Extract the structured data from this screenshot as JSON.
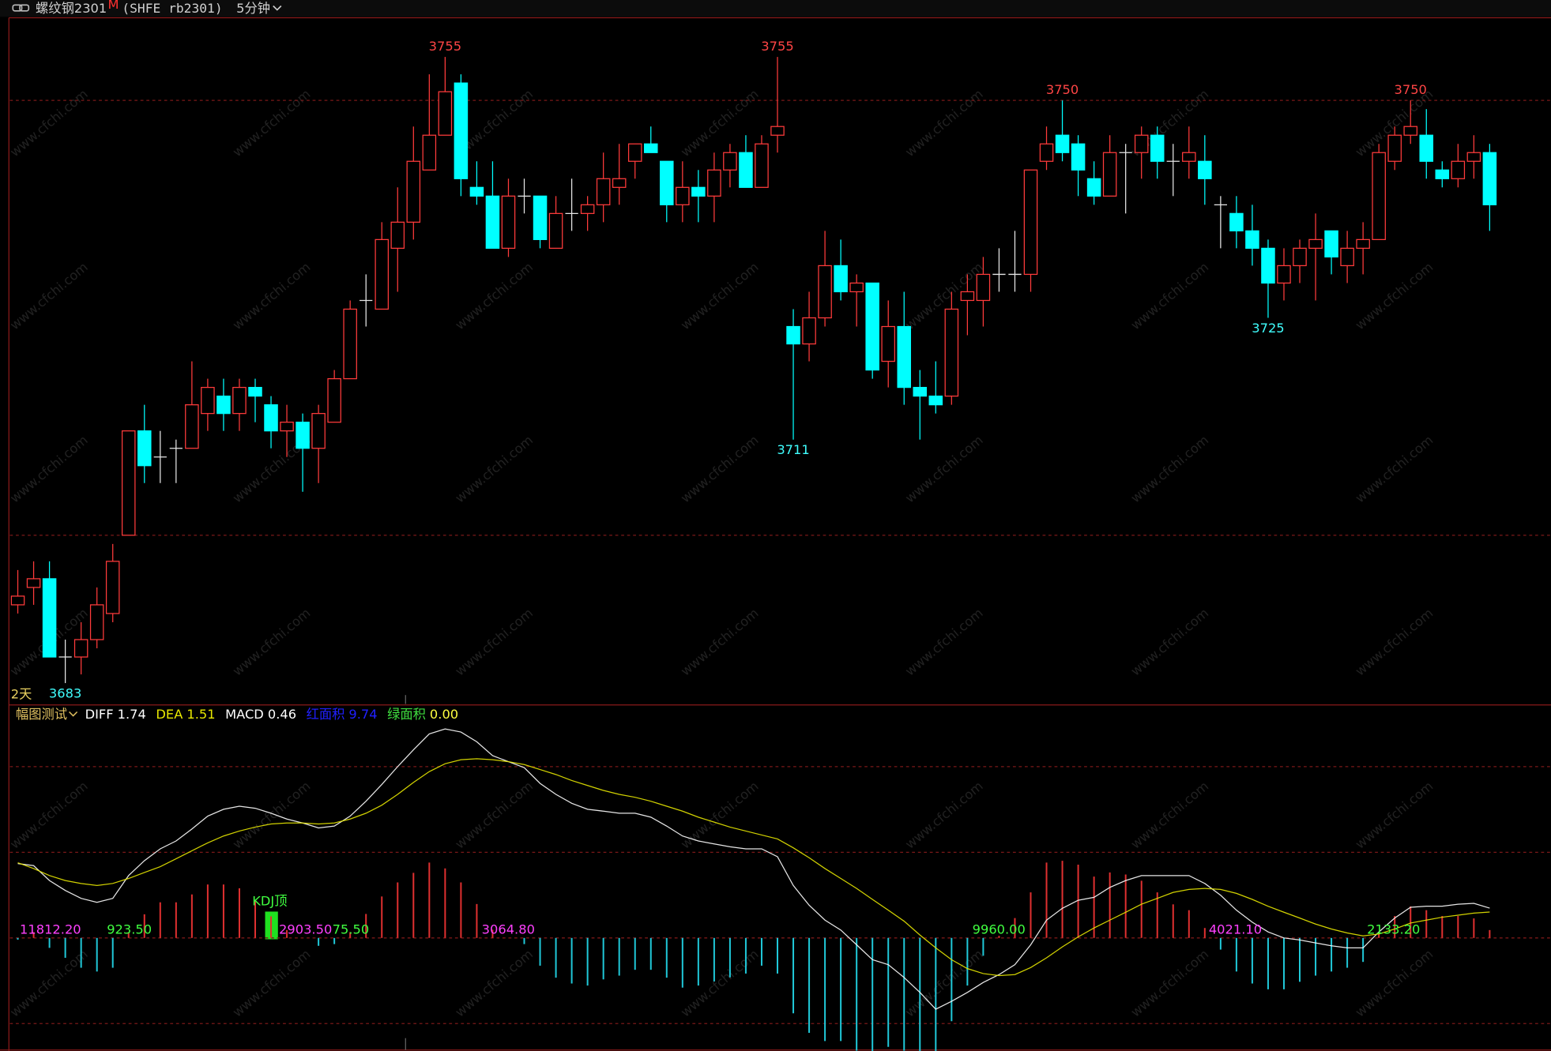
{
  "header": {
    "symbol": "螺纹钢2301",
    "flag": "M",
    "code": "(SHFE rb2301)",
    "period": "5分钟"
  },
  "watermark": "www.cfchi.com",
  "chart_data": [
    {
      "type": "candlestick",
      "open": [
        3692,
        3694,
        3695,
        3686,
        3686,
        3688,
        3691,
        3700,
        3712,
        3709,
        3710,
        3710,
        3714,
        3716,
        3714,
        3717,
        3715,
        3712,
        3713,
        3710,
        3713,
        3718,
        3727,
        3726,
        3733,
        3736,
        3742,
        3746,
        3752,
        3740,
        3739,
        3733,
        3739,
        3739,
        3733,
        3737,
        3737,
        3738,
        3740,
        3743,
        3745,
        3743,
        3738,
        3740,
        3739,
        3742,
        3744,
        3740,
        3746,
        3724,
        3722,
        3725,
        3731,
        3728,
        3729,
        3720,
        3724,
        3717,
        3716,
        3716,
        3727,
        3727,
        3730,
        3730,
        3730,
        3743,
        3746,
        3745,
        3741,
        3739,
        3744,
        3744,
        3746,
        3743,
        3743,
        3743,
        3738,
        3737,
        3735,
        3733,
        3729,
        3731,
        3733,
        3735,
        3731,
        3733,
        3734,
        3743,
        3746,
        3746,
        3742,
        3741,
        3743,
        3744
      ],
      "high": [
        3696,
        3697,
        3697,
        3688,
        3690,
        3694,
        3699,
        3712,
        3715,
        3712,
        3711,
        3720,
        3718,
        3718,
        3718,
        3718,
        3716,
        3715,
        3714,
        3715,
        3719,
        3727,
        3730,
        3736,
        3740,
        3747,
        3753,
        3755,
        3753,
        3743,
        3743,
        3741,
        3741,
        3739,
        3739,
        3741,
        3739,
        3744,
        3745,
        3745,
        3747,
        3743,
        3743,
        3742,
        3744,
        3745,
        3746,
        3746,
        3755,
        3726,
        3728,
        3735,
        3734,
        3730,
        3729,
        3727,
        3728,
        3719,
        3720,
        3728,
        3730,
        3732,
        3733,
        3735,
        3742,
        3747,
        3750,
        3746,
        3743,
        3746,
        3745,
        3747,
        3747,
        3745,
        3747,
        3746,
        3739,
        3739,
        3738,
        3734,
        3733,
        3734,
        3737,
        3735,
        3735,
        3736,
        3745,
        3747,
        3750,
        3749,
        3743,
        3745,
        3746,
        3745
      ],
      "low": [
        3691,
        3692,
        3686,
        3683,
        3684,
        3687,
        3690,
        3700,
        3706,
        3706,
        3706,
        3710,
        3712,
        3712,
        3712,
        3713,
        3710,
        3709,
        3705,
        3706,
        3713,
        3718,
        3724,
        3726,
        3728,
        3734,
        3742,
        3746,
        3739,
        3738,
        3733,
        3732,
        3737,
        3733,
        3733,
        3735,
        3735,
        3736,
        3738,
        3741,
        3744,
        3736,
        3736,
        3736,
        3736,
        3740,
        3740,
        3740,
        3744,
        3711,
        3720,
        3724,
        3727,
        3724,
        3718,
        3717,
        3715,
        3711,
        3714,
        3715,
        3723,
        3724,
        3728,
        3728,
        3728,
        3742,
        3743,
        3739,
        3738,
        3739,
        3737,
        3741,
        3741,
        3739,
        3741,
        3738,
        3733,
        3733,
        3731,
        3725,
        3727,
        3729,
        3727,
        3730,
        3729,
        3730,
        3734,
        3742,
        3745,
        3741,
        3740,
        3740,
        3741,
        3735
      ],
      "close": [
        3693,
        3695,
        3686,
        3686,
        3688,
        3692,
        3697,
        3712,
        3708,
        3709,
        3710,
        3715,
        3717,
        3714,
        3717,
        3716,
        3712,
        3713,
        3710,
        3714,
        3718,
        3726,
        3727,
        3734,
        3736,
        3743,
        3746,
        3751,
        3741,
        3739,
        3733,
        3739,
        3739,
        3734,
        3737,
        3737,
        3738,
        3741,
        3741,
        3745,
        3744,
        3738,
        3740,
        3739,
        3742,
        3744,
        3740,
        3745,
        3747,
        3722,
        3725,
        3731,
        3728,
        3729,
        3719,
        3724,
        3717,
        3716,
        3715,
        3726,
        3728,
        3730,
        3730,
        3730,
        3742,
        3745,
        3744,
        3742,
        3739,
        3744,
        3744,
        3746,
        3743,
        3743,
        3744,
        3741,
        3738,
        3735,
        3733,
        3729,
        3731,
        3733,
        3734,
        3732,
        3733,
        3734,
        3744,
        3746,
        3747,
        3743,
        3741,
        3743,
        3744,
        3738
      ],
      "ylim": [
        3680.6,
        3759.5
      ],
      "grid_levels": [
        3700,
        3750
      ],
      "up_color": "#ff3b3b",
      "down_color": "#00ffff",
      "flat_color": "#e6e6e6",
      "high_labels": [
        3755,
        3755,
        3750,
        3750
      ],
      "high_label_color": "#ff4545",
      "low_labels": [
        3683,
        3711,
        3725
      ],
      "low_label_color": "#40ffff",
      "period_label": "2天"
    },
    {
      "type": "macd",
      "indicator": "幅图测试",
      "ylim": [
        -6.6,
        13.6
      ],
      "grid_levels": [
        10,
        5,
        0,
        -5
      ],
      "series": [
        {
          "name": "DIFF",
          "color": "#ffffff",
          "values": [
            4.34,
            4.22,
            3.35,
            2.77,
            2.31,
            2.08,
            2.31,
            3.64,
            4.51,
            5.2,
            5.66,
            6.36,
            7.11,
            7.51,
            7.69,
            7.57,
            7.28,
            6.94,
            6.71,
            6.42,
            6.53,
            7.11,
            7.98,
            8.96,
            10.0,
            10.98,
            11.91,
            12.2,
            12.02,
            11.45,
            10.64,
            10.29,
            9.94,
            9.02,
            8.38,
            7.86,
            7.51,
            7.4,
            7.28,
            7.28,
            7.05,
            6.53,
            5.95,
            5.66,
            5.49,
            5.32,
            5.2,
            5.2,
            4.74,
            3.06,
            1.91,
            1.04,
            0.46,
            -0.4,
            -1.27,
            -1.56,
            -2.31,
            -3.18,
            -4.16,
            -3.7,
            -3.18,
            -2.6,
            -2.14,
            -1.56,
            -0.4,
            1.04,
            1.73,
            2.2,
            2.37,
            2.95,
            3.35,
            3.64,
            3.64,
            3.64,
            3.64,
            3.18,
            2.49,
            1.62,
            0.92,
            0.35,
            0,
            -0.12,
            -0.29,
            -0.46,
            -0.58,
            -0.58,
            0.35,
            1.16,
            1.79,
            1.85,
            1.85,
            1.97,
            2.02,
            1.74
          ]
        },
        {
          "name": "DEA",
          "color": "#e8e800",
          "values": [
            4.39,
            4.05,
            3.64,
            3.35,
            3.18,
            3.06,
            3.18,
            3.47,
            3.82,
            4.16,
            4.62,
            5.09,
            5.55,
            5.95,
            6.24,
            6.47,
            6.65,
            6.71,
            6.71,
            6.65,
            6.71,
            6.94,
            7.28,
            7.75,
            8.38,
            9.08,
            9.71,
            10.17,
            10.4,
            10.46,
            10.4,
            10.29,
            10.12,
            9.83,
            9.54,
            9.19,
            8.9,
            8.61,
            8.38,
            8.21,
            7.98,
            7.69,
            7.4,
            7.05,
            6.76,
            6.47,
            6.24,
            6.01,
            5.78,
            5.26,
            4.68,
            4.05,
            3.47,
            2.89,
            2.25,
            1.62,
            0.98,
            0.17,
            -0.58,
            -1.27,
            -1.79,
            -2.08,
            -2.2,
            -2.14,
            -1.73,
            -1.16,
            -0.52,
            0.06,
            0.58,
            1.04,
            1.5,
            1.97,
            2.31,
            2.66,
            2.83,
            2.89,
            2.83,
            2.6,
            2.25,
            1.85,
            1.5,
            1.16,
            0.81,
            0.52,
            0.29,
            0.12,
            0.23,
            0.52,
            0.87,
            1.04,
            1.21,
            1.33,
            1.45,
            1.51
          ]
        },
        {
          "name": "MACD",
          "color": "#ffffff",
          "up_color": "#e03030",
          "down_color": "#20c8d8",
          "values": [
            -0.1,
            0.34,
            -0.58,
            -1.16,
            -1.74,
            -1.96,
            -1.74,
            0.34,
            1.38,
            2.08,
            2.08,
            2.54,
            3.12,
            3.12,
            2.9,
            2.2,
            1.26,
            0.46,
            0,
            -0.46,
            -0.36,
            0.34,
            1.4,
            2.42,
            3.24,
            3.8,
            4.4,
            4.06,
            3.24,
            1.98,
            0.48,
            0,
            -0.36,
            -1.62,
            -2.32,
            -2.66,
            -2.78,
            -2.42,
            -2.2,
            -1.86,
            -1.86,
            -2.32,
            -2.9,
            -2.78,
            -2.54,
            -2.3,
            -2.08,
            -1.62,
            -2.08,
            -4.4,
            -5.54,
            -6.02,
            -6.02,
            -6.58,
            -7.04,
            -6.36,
            -6.58,
            -6.7,
            -7.16,
            -4.86,
            -2.78,
            -1.04,
            0.12,
            1.16,
            2.66,
            4.4,
            4.5,
            4.28,
            3.58,
            3.82,
            3.7,
            3.34,
            2.66,
            1.96,
            1.62,
            0.58,
            -0.68,
            -1.96,
            -2.66,
            -3,
            -3,
            -2.56,
            -2.2,
            -1.96,
            -1.74,
            -1.4,
            0.24,
            1.28,
            1.84,
            1.62,
            1.28,
            1.28,
            1.14,
            0.46
          ]
        }
      ],
      "areas": {
        "names": [
          "红面积",
          "绿面积"
        ],
        "values": [
          9.74,
          0
        ],
        "value_labels": [
          "9.74",
          "0.00"
        ],
        "name_colors": [
          "#2020ff",
          "#40e040"
        ],
        "value_colors": [
          "#2020ff",
          "#ffff40"
        ]
      },
      "area_sums": {
        "values": [
          11812.2,
          923.5,
          2903.5,
          75.5,
          3064.8,
          9960,
          4021.1,
          2133.2
        ],
        "value_labels": [
          "11812.20",
          "923.50",
          "2903.50",
          "75.50",
          "3064.80",
          "9960.00",
          "4021.10",
          "2133.20"
        ],
        "colors": [
          "#ff40ff",
          "#40ff40",
          "#ff40ff",
          "#40ff40",
          "#ff40ff",
          "#40ff40",
          "#ff40ff",
          "#40ff40"
        ]
      },
      "signal": {
        "text": "KDJ顶",
        "color": "#40ff40"
      }
    }
  ]
}
